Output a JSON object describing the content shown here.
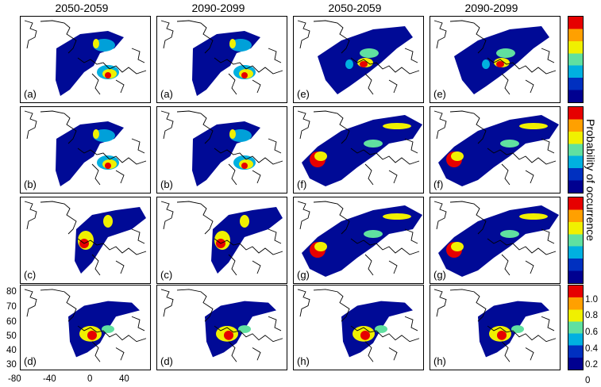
{
  "column_titles": [
    "2050-2059",
    "2090-2099",
    "2050-2059",
    "2090-2099"
  ],
  "panel_labels": [
    [
      "(a)",
      "(a)",
      "(e)",
      "(e)"
    ],
    [
      "(b)",
      "(b)",
      "(f)",
      "(f)"
    ],
    [
      "(c)",
      "(c)",
      "(g)",
      "(g)"
    ],
    [
      "(d)",
      "(d)",
      "(h)",
      "(h)"
    ]
  ],
  "colorbar": {
    "title": "Probability of occurrence",
    "ticks": [
      "1.0",
      "0.8",
      "0.6",
      "0.4",
      "0.2",
      "0"
    ],
    "colors": [
      "#e60000",
      "#ffa000",
      "#f0f000",
      "#60e0a0",
      "#00b0e0",
      "#0030c0",
      "#000090"
    ]
  },
  "y_axis_ticks": [
    "80",
    "70",
    "60",
    "50",
    "40",
    "30"
  ],
  "x_axis_ticks": [
    "-80",
    "-40",
    "0",
    "40"
  ]
}
